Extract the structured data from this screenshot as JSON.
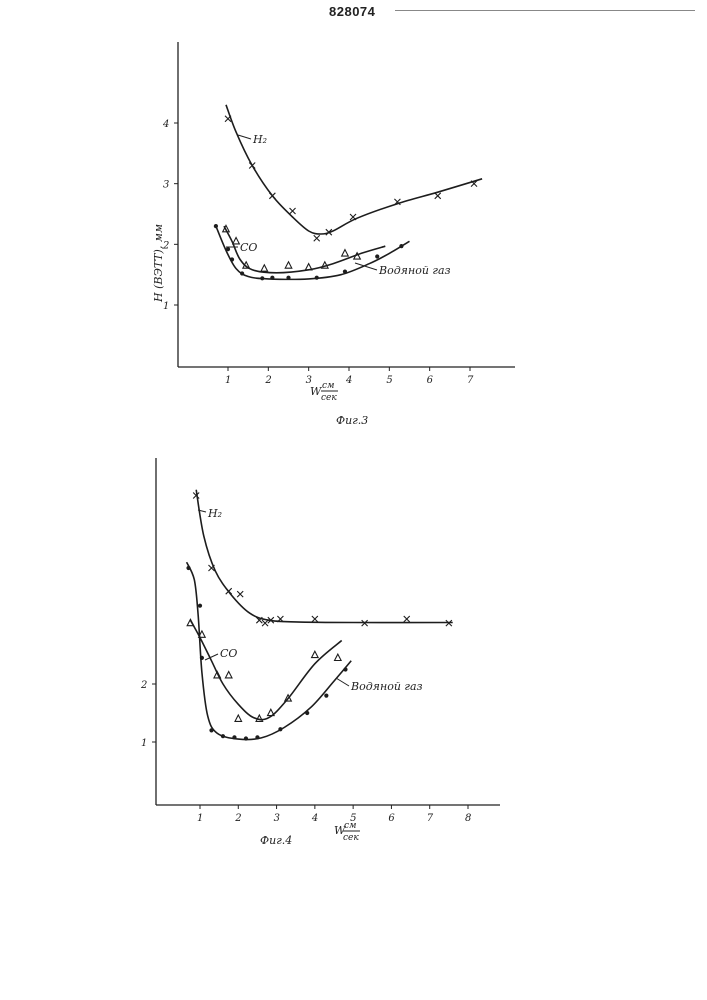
{
  "page": {
    "patent_number": "828074"
  },
  "chart_data": [
    {
      "type": "line",
      "ylabel": "H (ВЭТТ), мм",
      "xlabel_main": "W",
      "xlabel_unit_top": "см",
      "xlabel_unit_bottom": "сек",
      "caption": "Фиг.3",
      "xlim": [
        0,
        8
      ],
      "ylim": [
        0,
        5
      ],
      "x_ticks": [
        "1",
        "2",
        "3",
        "4",
        "5",
        "6",
        "7"
      ],
      "y_ticks": [
        "1",
        "2",
        "3",
        "4"
      ],
      "series": [
        {
          "name": "H₂",
          "marker": "x",
          "points": [
            [
              1.0,
              4.07
            ],
            [
              1.6,
              3.3
            ],
            [
              2.1,
              2.8
            ],
            [
              2.6,
              2.55
            ],
            [
              3.2,
              2.1
            ],
            [
              3.5,
              2.2
            ],
            [
              4.1,
              2.45
            ],
            [
              5.2,
              2.7
            ],
            [
              6.2,
              2.8
            ],
            [
              7.1,
              3.0
            ]
          ],
          "curve": [
            [
              0.95,
              4.3
            ],
            [
              1.2,
              3.85
            ],
            [
              1.6,
              3.3
            ],
            [
              2.1,
              2.8
            ],
            [
              2.6,
              2.45
            ],
            [
              3.0,
              2.22
            ],
            [
              3.3,
              2.17
            ],
            [
              3.6,
              2.22
            ],
            [
              4.2,
              2.43
            ],
            [
              5.2,
              2.67
            ],
            [
              6.2,
              2.86
            ],
            [
              7.3,
              3.08
            ]
          ]
        },
        {
          "name": "CO",
          "marker": "triangle",
          "points": [
            [
              0.95,
              2.25
            ],
            [
              1.2,
              2.05
            ],
            [
              1.45,
              1.65
            ],
            [
              1.9,
              1.6
            ],
            [
              2.5,
              1.65
            ],
            [
              3.0,
              1.62
            ],
            [
              3.4,
              1.65
            ],
            [
              3.9,
              1.85
            ],
            [
              4.2,
              1.8
            ]
          ],
          "curve": [
            [
              0.9,
              2.3
            ],
            [
              1.1,
              2.05
            ],
            [
              1.3,
              1.75
            ],
            [
              1.6,
              1.58
            ],
            [
              2.2,
              1.53
            ],
            [
              3.0,
              1.58
            ],
            [
              3.6,
              1.68
            ],
            [
              4.3,
              1.85
            ],
            [
              4.9,
              1.97
            ]
          ]
        },
        {
          "name": "Водяной газ",
          "marker": "dot",
          "points": [
            [
              0.7,
              2.3
            ],
            [
              1.0,
              1.92
            ],
            [
              1.1,
              1.75
            ],
            [
              1.35,
              1.52
            ],
            [
              1.85,
              1.44
            ],
            [
              2.1,
              1.45
            ],
            [
              2.5,
              1.45
            ],
            [
              3.2,
              1.45
            ],
            [
              3.9,
              1.55
            ],
            [
              4.7,
              1.8
            ],
            [
              5.3,
              1.97
            ]
          ],
          "curve": [
            [
              0.7,
              2.3
            ],
            [
              0.95,
              1.9
            ],
            [
              1.2,
              1.6
            ],
            [
              1.5,
              1.47
            ],
            [
              2.0,
              1.43
            ],
            [
              3.0,
              1.43
            ],
            [
              3.8,
              1.5
            ],
            [
              4.5,
              1.68
            ],
            [
              5.0,
              1.85
            ],
            [
              5.5,
              2.05
            ]
          ]
        }
      ]
    },
    {
      "type": "line",
      "xlabel_main": "W",
      "xlabel_unit_top": "см",
      "xlabel_unit_bottom": "сек",
      "caption": "Фиг.4",
      "xlim": [
        0,
        8.5
      ],
      "ylim": [
        0,
        5.7
      ],
      "x_ticks": [
        "1",
        "2",
        "3",
        "4",
        "5",
        "6",
        "7",
        "8"
      ],
      "y_ticks": [
        "1",
        "2"
      ],
      "series": [
        {
          "name": "H₂",
          "marker": "x",
          "points": [
            [
              0.9,
              5.25
            ],
            [
              1.3,
              4.0
            ],
            [
              1.75,
              3.6
            ],
            [
              2.05,
              3.55
            ],
            [
              2.55,
              3.1
            ],
            [
              2.7,
              3.05
            ],
            [
              2.85,
              3.1
            ],
            [
              3.1,
              3.12
            ],
            [
              4.0,
              3.12
            ],
            [
              5.3,
              3.05
            ],
            [
              6.4,
              3.12
            ],
            [
              7.5,
              3.05
            ]
          ],
          "curve": [
            [
              0.9,
              5.35
            ],
            [
              1.1,
              4.55
            ],
            [
              1.4,
              3.95
            ],
            [
              1.8,
              3.55
            ],
            [
              2.3,
              3.22
            ],
            [
              2.8,
              3.1
            ],
            [
              3.5,
              3.07
            ],
            [
              5.0,
              3.06
            ],
            [
              7.6,
              3.06
            ]
          ]
        },
        {
          "name": "CO",
          "marker": "triangle",
          "points": [
            [
              0.75,
              3.05
            ],
            [
              1.05,
              2.85
            ],
            [
              1.45,
              2.15
            ],
            [
              1.75,
              2.15
            ],
            [
              2.0,
              1.4
            ],
            [
              2.55,
              1.4
            ],
            [
              2.85,
              1.5
            ],
            [
              3.3,
              1.75
            ],
            [
              4.0,
              2.5
            ],
            [
              4.6,
              2.45
            ]
          ],
          "curve": [
            [
              0.75,
              3.1
            ],
            [
              1.0,
              2.8
            ],
            [
              1.3,
              2.4
            ],
            [
              1.6,
              2.0
            ],
            [
              2.0,
              1.65
            ],
            [
              2.4,
              1.42
            ],
            [
              2.8,
              1.42
            ],
            [
              3.3,
              1.75
            ],
            [
              4.0,
              2.35
            ],
            [
              4.7,
              2.75
            ]
          ]
        },
        {
          "name": "Водяной газ",
          "marker": "dot",
          "points": [
            [
              0.7,
              4.0
            ],
            [
              1.0,
              3.35
            ],
            [
              1.05,
              2.45
            ],
            [
              1.3,
              1.2
            ],
            [
              1.6,
              1.1
            ],
            [
              1.9,
              1.08
            ],
            [
              2.2,
              1.06
            ],
            [
              2.5,
              1.08
            ],
            [
              3.1,
              1.22
            ],
            [
              3.8,
              1.5
            ],
            [
              4.3,
              1.8
            ],
            [
              4.8,
              2.25
            ]
          ],
          "curve": [
            [
              0.65,
              4.1
            ],
            [
              0.85,
              3.8
            ],
            [
              0.95,
              3.2
            ],
            [
              1.05,
              2.2
            ],
            [
              1.2,
              1.45
            ],
            [
              1.45,
              1.15
            ],
            [
              2.0,
              1.05
            ],
            [
              2.6,
              1.07
            ],
            [
              3.2,
              1.25
            ],
            [
              3.9,
              1.6
            ],
            [
              4.5,
              2.05
            ],
            [
              4.95,
              2.4
            ]
          ]
        }
      ]
    }
  ]
}
